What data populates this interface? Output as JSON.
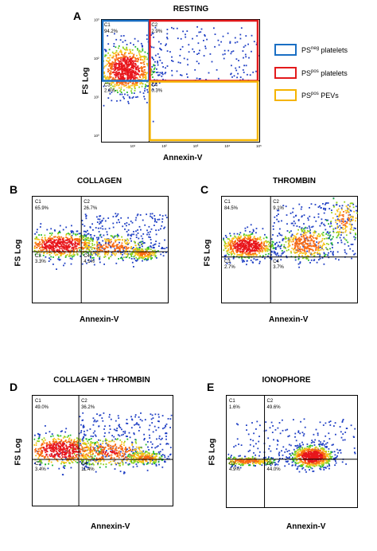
{
  "chart_data": [
    {
      "type": "scatter",
      "letter": "A",
      "title": "RESTING",
      "xlabel": "Annexin-V",
      "ylabel": "FS Log",
      "xticks": [
        "10⁰",
        "10¹",
        "10²",
        "10³",
        "10⁴",
        "10⁵"
      ],
      "yticks": [
        "10⁰",
        "10¹",
        "10²",
        "10³"
      ],
      "quadrants": [
        {
          "id": "C1",
          "label": "C1",
          "value": "94.2%"
        },
        {
          "id": "C2",
          "label": "C2",
          "value": "2.9%"
        },
        {
          "id": "C3",
          "label": "C3",
          "value": "2.6%"
        },
        {
          "id": "C4",
          "label": "C4",
          "value": "0.3%"
        }
      ],
      "gates": [
        {
          "region": "PSneg platelets",
          "color": "#1a6fc4"
        },
        {
          "region": "PSpos platelets",
          "color": "#e31a1c"
        },
        {
          "region": "PSpos PEVs",
          "color": "#f5b400"
        }
      ]
    },
    {
      "type": "scatter",
      "letter": "B",
      "title": "COLLAGEN",
      "xlabel": "Annexin-V",
      "ylabel": "FS Log",
      "quadrants": [
        {
          "id": "C1",
          "label": "C1",
          "value": "65.9%"
        },
        {
          "id": "C2",
          "label": "C2",
          "value": "26.7%"
        },
        {
          "id": "C3",
          "label": "C3",
          "value": "3.3%"
        },
        {
          "id": "C4",
          "label": "C4",
          "value": "4.1%"
        }
      ]
    },
    {
      "type": "scatter",
      "letter": "C",
      "title": "THROMBIN",
      "xlabel": "Annexin-V",
      "ylabel": "FS Log",
      "quadrants": [
        {
          "id": "C1",
          "label": "C1",
          "value": "84.5%"
        },
        {
          "id": "C2",
          "label": "C2",
          "value": "9.1%"
        },
        {
          "id": "C3",
          "label": "C3",
          "value": "2.7%"
        },
        {
          "id": "C4",
          "label": "C4",
          "value": "3.7%"
        }
      ]
    },
    {
      "type": "scatter",
      "letter": "D",
      "title": "COLLAGEN + THROMBIN",
      "xlabel": "Annexin-V",
      "ylabel": "FS Log",
      "quadrants": [
        {
          "id": "C1",
          "label": "C1",
          "value": "49.0%"
        },
        {
          "id": "C2",
          "label": "C2",
          "value": "36.2%"
        },
        {
          "id": "C3",
          "label": "C3",
          "value": "3.4%"
        },
        {
          "id": "C4",
          "label": "C4",
          "value": "11.4%"
        }
      ]
    },
    {
      "type": "scatter",
      "letter": "E",
      "title": "IONOPHORE",
      "xlabel": "Annexin-V",
      "ylabel": "FS Log",
      "quadrants": [
        {
          "id": "C1",
          "label": "C1",
          "value": "1.6%"
        },
        {
          "id": "C2",
          "label": "C2",
          "value": "49.6%"
        },
        {
          "id": "C3",
          "label": "C3",
          "value": "4.9%"
        },
        {
          "id": "C4",
          "label": "C4",
          "value": "44.0%"
        }
      ]
    }
  ],
  "legend": [
    {
      "prefix": "PS",
      "sup": "neg",
      "suffix": " platelets",
      "color": "#1a6fc4"
    },
    {
      "prefix": "PS",
      "sup": "pos",
      "suffix": " platelets",
      "color": "#e31a1c"
    },
    {
      "prefix": "PS",
      "sup": "pos",
      "suffix": " PEVs",
      "color": "#f5b400"
    }
  ]
}
